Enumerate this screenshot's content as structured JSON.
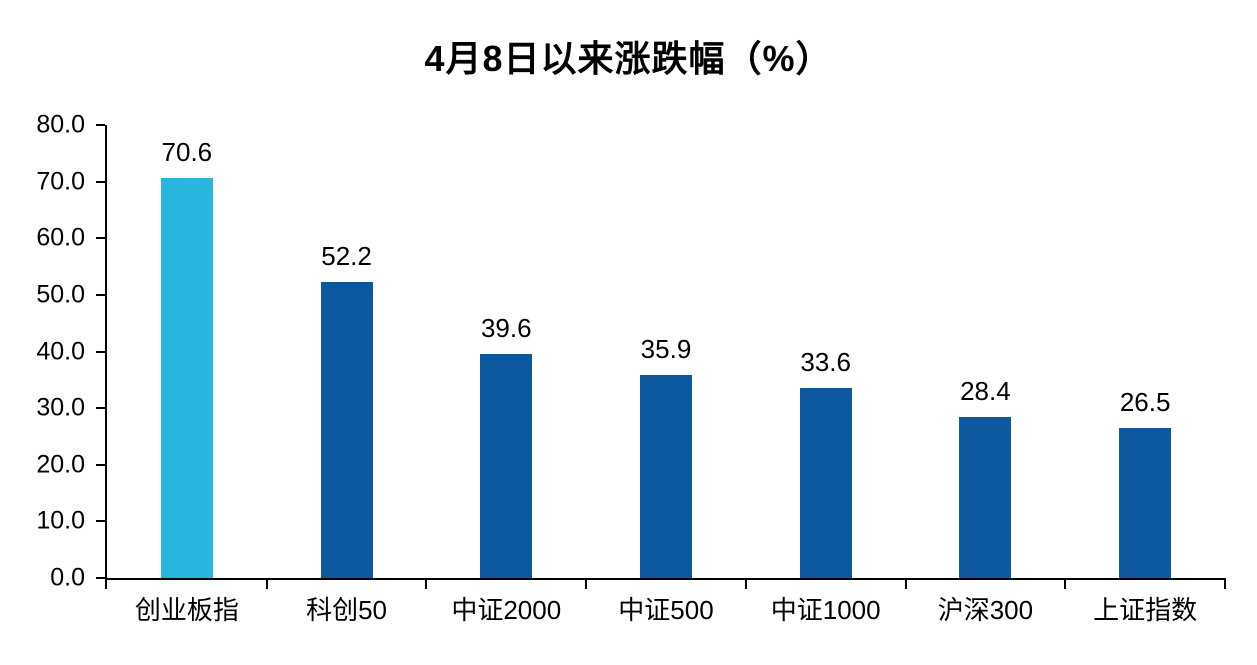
{
  "colors": {
    "highlight_bar": "#29B6DE",
    "default_bar": "#0C59A0",
    "axis": "#000000",
    "text": "#000000",
    "background": "#FFFFFF"
  },
  "chart_data": {
    "type": "bar",
    "title": "4月8日以来涨跌幅（%）",
    "categories": [
      "创业板指",
      "科创50",
      "中证2000",
      "中证500",
      "中证1000",
      "沪深300",
      "上证指数"
    ],
    "values": [
      70.6,
      52.2,
      39.6,
      35.9,
      33.6,
      28.4,
      26.5
    ],
    "value_labels": [
      "70.6",
      "52.2",
      "39.6",
      "35.9",
      "33.6",
      "28.4",
      "26.5"
    ],
    "bar_colors": [
      "#29B6DE",
      "#0C59A0",
      "#0C59A0",
      "#0C59A0",
      "#0C59A0",
      "#0C59A0",
      "#0C59A0"
    ],
    "xlabel": "",
    "ylabel": "",
    "ylim": [
      0,
      80
    ],
    "ytick_step": 10,
    "ytick_labels": [
      "0.0",
      "10.0",
      "20.0",
      "30.0",
      "40.0",
      "50.0",
      "60.0",
      "70.0",
      "80.0"
    ],
    "grid": false,
    "legend": false,
    "highlighted_category": "创业板指"
  }
}
